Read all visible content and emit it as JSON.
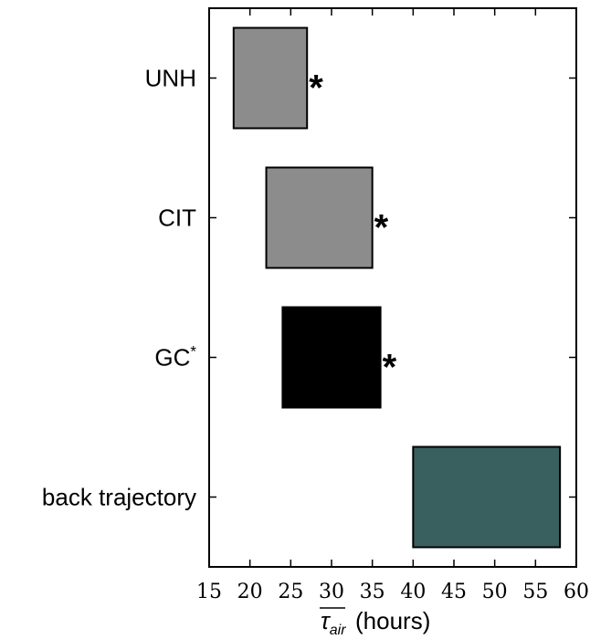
{
  "chart_data": {
    "type": "bar",
    "orientation": "horizontal-range",
    "categories": [
      "UNH",
      "CIT",
      "GC*",
      "back trajectory"
    ],
    "ranges": [
      {
        "category": "UNH",
        "start": 18,
        "end": 27,
        "color": "#8c8c8c",
        "marker": "*"
      },
      {
        "category": "CIT",
        "start": 22,
        "end": 35,
        "color": "#8c8c8c",
        "marker": "*"
      },
      {
        "category": "GC*",
        "start": 24,
        "end": 36,
        "color": "#000000",
        "marker": "*"
      },
      {
        "category": "back trajectory",
        "start": 40,
        "end": 58,
        "color": "#3a5f5f",
        "marker": ""
      }
    ],
    "x_ticks": [
      15,
      20,
      25,
      30,
      35,
      40,
      45,
      50,
      55,
      60
    ],
    "xlim": [
      15,
      60
    ],
    "xlabel": "τair (hours)",
    "xlabel_parts": {
      "symbol": "τ",
      "subscript": "air",
      "unit": "(hours)"
    },
    "ylabel": "",
    "title": "",
    "grid": false
  }
}
